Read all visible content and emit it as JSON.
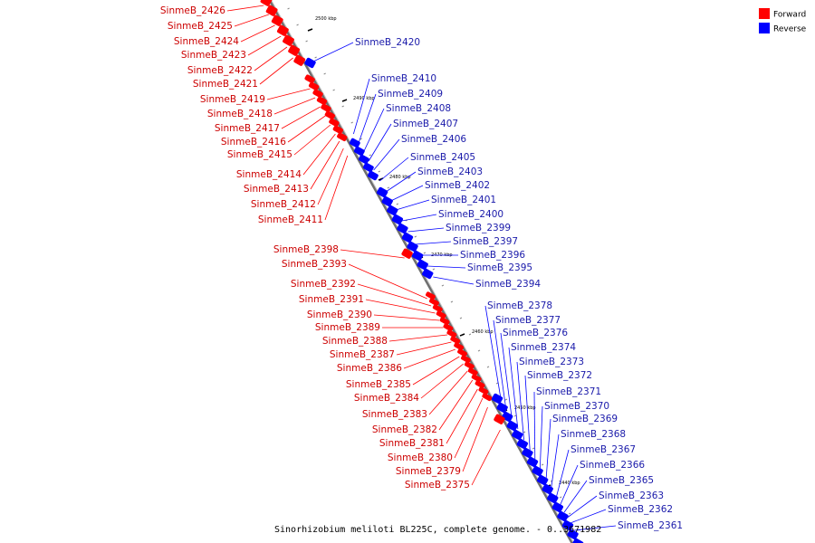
{
  "title": "Sinorhizobium meliloti BL225C, complete genome. - 0..3671982",
  "legend": [
    {
      "label": "Forward",
      "color": "#ff0000"
    },
    {
      "label": "Reverse",
      "color": "#0000ff"
    }
  ],
  "colors": {
    "forward": "#ff0000",
    "reverse": "#0000ff",
    "backbone": "#808080"
  },
  "ticks": [
    "2500 kbp",
    "2490 kbp",
    "2480 kbp",
    "2470 kbp",
    "2460 kbp",
    "2450 kbp",
    "2440 kbp"
  ],
  "forward_labels": [
    "SinmeB_2426",
    "SinmeB_2425",
    "SinmeB_2424",
    "SinmeB_2423",
    "SinmeB_2422",
    "SinmeB_2421",
    "SinmeB_2419",
    "SinmeB_2418",
    "SinmeB_2417",
    "SinmeB_2416",
    "SinmeB_2415",
    "SinmeB_2414",
    "SinmeB_2413",
    "SinmeB_2412",
    "SinmeB_2411",
    "SinmeB_2398",
    "SinmeB_2393",
    "SinmeB_2392",
    "SinmeB_2391",
    "SinmeB_2390",
    "SinmeB_2389",
    "SinmeB_2388",
    "SinmeB_2387",
    "SinmeB_2386",
    "SinmeB_2385",
    "SinmeB_2384",
    "SinmeB_2383",
    "SinmeB_2382",
    "SinmeB_2381",
    "SinmeB_2380",
    "SinmeB_2379",
    "SinmeB_2375"
  ],
  "reverse_labels": [
    "SinmeB_2420",
    "SinmeB_2410",
    "SinmeB_2409",
    "SinmeB_2408",
    "SinmeB_2407",
    "SinmeB_2406",
    "SinmeB_2405",
    "SinmeB_2403",
    "SinmeB_2402",
    "SinmeB_2401",
    "SinmeB_2400",
    "SinmeB_2399",
    "SinmeB_2397",
    "SinmeB_2396",
    "SinmeB_2395",
    "SinmeB_2394",
    "SinmeB_2378",
    "SinmeB_2377",
    "SinmeB_2376",
    "SinmeB_2374",
    "SinmeB_2373",
    "SinmeB_2372",
    "SinmeB_2371",
    "SinmeB_2370",
    "SinmeB_2369",
    "SinmeB_2368",
    "SinmeB_2367",
    "SinmeB_2366",
    "SinmeB_2365",
    "SinmeB_2363",
    "SinmeB_2362",
    "SinmeB_2361"
  ]
}
